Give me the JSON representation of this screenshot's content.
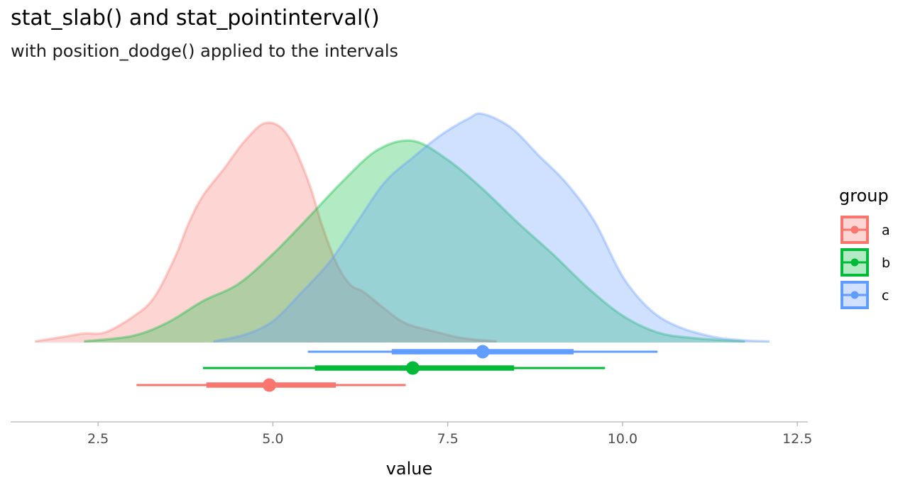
{
  "title": "stat_slab() and stat_pointinterval()",
  "subtitle": "with position_dodge() applied to the intervals",
  "chart_data": {
    "type": "area",
    "xlabel": "value",
    "ylabel": "",
    "xlim": [
      1.25,
      12.65
    ],
    "x_ticks": [
      2.5,
      5.0,
      7.5,
      10.0,
      12.5
    ],
    "x_tick_labels": [
      "2.5",
      "5.0",
      "7.5",
      "10.0",
      "12.5"
    ],
    "grid": false,
    "legend": {
      "title": "group",
      "position": "right",
      "entries": [
        "a",
        "b",
        "c"
      ]
    },
    "colors": {
      "a": "#F8766D",
      "b": "#00BA38",
      "c": "#619CFF"
    },
    "series": [
      {
        "name": "a",
        "density": {
          "x": [
            1.6,
            2.0,
            2.3,
            2.6,
            3.0,
            3.3,
            3.6,
            3.8,
            4.0,
            4.3,
            4.6,
            4.9,
            5.2,
            5.5,
            5.7,
            5.9,
            6.1,
            6.3,
            6.6,
            6.9,
            7.3,
            7.7,
            8.2
          ],
          "y": [
            0.01,
            0.05,
            0.08,
            0.09,
            0.23,
            0.4,
            0.76,
            1.07,
            1.31,
            1.55,
            1.8,
            1.96,
            1.86,
            1.45,
            1.05,
            0.72,
            0.52,
            0.45,
            0.3,
            0.17,
            0.1,
            0.04,
            0.01
          ]
        },
        "interval": {
          "point": 4.95,
          "inner": [
            4.05,
            5.9
          ],
          "outer": [
            3.05,
            6.9
          ]
        }
      },
      {
        "name": "b",
        "density": {
          "x": [
            2.3,
            3.0,
            3.5,
            4.0,
            4.5,
            5.0,
            5.5,
            6.0,
            6.5,
            7.0,
            7.5,
            8.0,
            8.5,
            9.0,
            9.5,
            10.0,
            10.5,
            11.0,
            11.75
          ],
          "y": [
            0.01,
            0.06,
            0.18,
            0.37,
            0.52,
            0.79,
            1.11,
            1.44,
            1.72,
            1.8,
            1.63,
            1.37,
            1.07,
            0.79,
            0.49,
            0.24,
            0.09,
            0.04,
            0.01
          ]
        },
        "interval": {
          "point": 7.0,
          "inner": [
            5.6,
            8.45
          ],
          "outer": [
            4.0,
            9.75
          ]
        }
      },
      {
        "name": "c",
        "density": {
          "x": [
            4.15,
            4.6,
            5.0,
            5.4,
            5.8,
            6.2,
            6.6,
            7.0,
            7.4,
            7.8,
            8.0,
            8.4,
            8.8,
            9.2,
            9.6,
            10.0,
            10.4,
            10.8,
            11.3,
            11.7,
            12.1
          ],
          "y": [
            0.01,
            0.07,
            0.19,
            0.44,
            0.71,
            1.07,
            1.43,
            1.65,
            1.85,
            2.0,
            2.04,
            1.92,
            1.67,
            1.42,
            1.08,
            0.59,
            0.29,
            0.14,
            0.05,
            0.02,
            0.01
          ]
        },
        "interval": {
          "point": 8.0,
          "inner": [
            6.7,
            9.3
          ],
          "outer": [
            5.5,
            10.5
          ]
        }
      }
    ]
  }
}
